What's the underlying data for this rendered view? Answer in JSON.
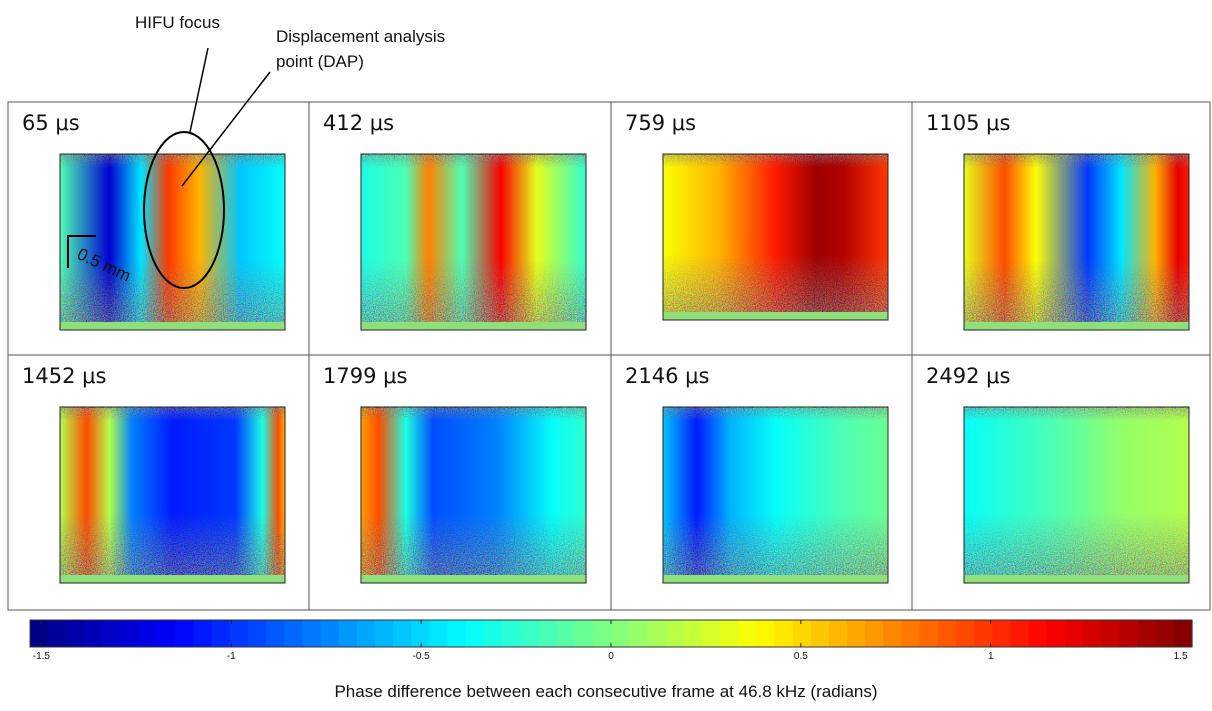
{
  "annotations": {
    "hifu_focus": "HIFU focus",
    "dap_line1": "Displacement analysis",
    "dap_line2": "point (DAP)",
    "scale_bar": "0.5 mm"
  },
  "panels": [
    "65 μs",
    "412 μs",
    "759 μs",
    "1105 μs",
    "1452 μs",
    "1799 μs",
    "2146 μs",
    "2492 μs"
  ],
  "colorbar": {
    "lim": [
      -1.53,
      1.53
    ],
    "ticks": [
      -1.5,
      -1,
      -0.5,
      0,
      0.5,
      1,
      1.5
    ],
    "label": "Phase difference between each consecutive frame at 46.8 kHz (radians)"
  }
}
